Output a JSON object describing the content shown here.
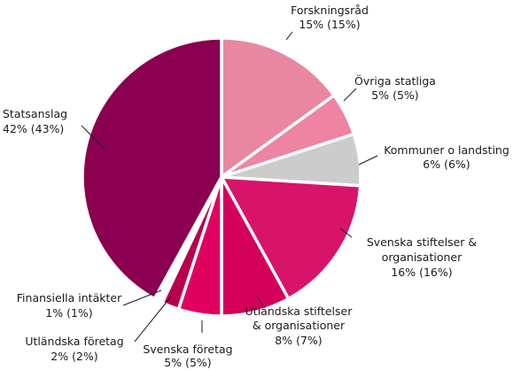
{
  "chart_data": {
    "type": "pie",
    "title": "",
    "start_angle_deg": 0,
    "direction": "clockwise",
    "slices": [
      {
        "key": "forskningsrad",
        "name": "Forskningsråd",
        "value": 15,
        "value_label": "15% (15%)",
        "color": "#e8879f"
      },
      {
        "key": "ovriga",
        "name": "Övriga statliga",
        "value": 5,
        "value_label": "5% (5%)",
        "color": "#ee83a2"
      },
      {
        "key": "kommuner",
        "name": "Kommuner o landsting",
        "value": 6,
        "value_label": "6% (6%)",
        "color": "#cccccc"
      },
      {
        "key": "sv_stift",
        "name": "Svenska stiftelser & organisationer",
        "value": 16,
        "value_label": "16% (16%)",
        "color": "#d8136a"
      },
      {
        "key": "utl_stift",
        "name": "Utländska stiftelser & organisationer",
        "value": 8,
        "value_label": "8% (7%)",
        "color": "#d4005b"
      },
      {
        "key": "sv_foretag",
        "name": "Svenska företag",
        "value": 5,
        "value_label": "5% (5%)",
        "color": "#e0005f"
      },
      {
        "key": "utl_foretag",
        "name": "Utländska företag",
        "value": 2,
        "value_label": "2% (2%)",
        "color": "#b8004f"
      },
      {
        "key": "finansiella",
        "name": "Finansiella intäkter",
        "value": 1,
        "value_label": "1% (1%)",
        "color": "#ffffff"
      },
      {
        "key": "statsanslag",
        "name": "Statsanslag",
        "value": 42,
        "value_label": "42% (43%)",
        "color": "#8b0050"
      }
    ]
  }
}
